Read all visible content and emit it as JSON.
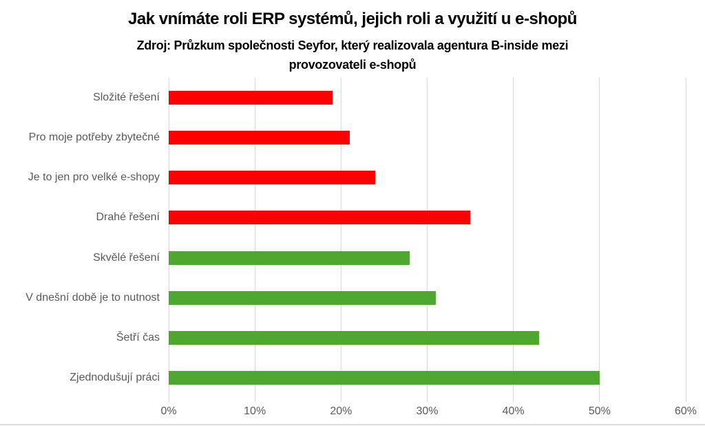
{
  "chart_data": {
    "type": "bar",
    "orientation": "horizontal",
    "title": "Jak vnímáte roli ERP systémů, jejich roli a využití u e-shopů",
    "subtitle_lines": [
      "Zdroj: Průzkum společnosti Seyfor, který realizovala agentura B-inside mezi",
      "provozovateli e-shopů"
    ],
    "categories": [
      "Složité řešení",
      "Pro moje potřeby zbytečné",
      "Je to jen pro velké e-shopy",
      "Drahé řešení",
      "Skvělé řešení",
      "V dnešní době je to nutnost",
      "Šetří čas",
      "Zjednodušují práci"
    ],
    "values": [
      19,
      21,
      24,
      35,
      28,
      31,
      43,
      50
    ],
    "bar_colors": [
      "#ff0000",
      "#ff0000",
      "#ff0000",
      "#ff0000",
      "#4ea72e",
      "#4ea72e",
      "#4ea72e",
      "#4ea72e"
    ],
    "xlabel": "",
    "ylabel": "",
    "xlim": [
      0,
      60
    ],
    "x_tick_values": [
      0,
      10,
      20,
      30,
      40,
      50,
      60
    ],
    "x_tick_labels": [
      "0%",
      "10%",
      "20%",
      "30%",
      "40%",
      "50%",
      "60%"
    ],
    "grid": true,
    "legend": false,
    "colors": {
      "negative_bar": "#ff0000",
      "positive_bar": "#4ea72e",
      "gridline": "#d9d9d9",
      "axis_text": "#595959",
      "title_text": "#000000"
    }
  }
}
